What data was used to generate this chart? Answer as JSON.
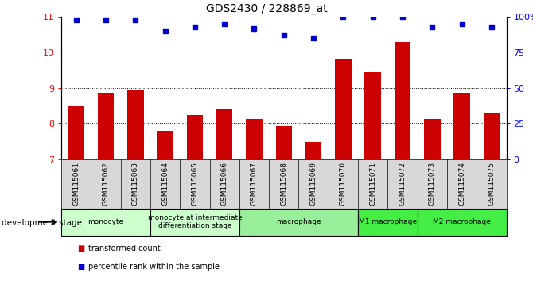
{
  "title": "GDS2430 / 228869_at",
  "samples": [
    "GSM115061",
    "GSM115062",
    "GSM115063",
    "GSM115064",
    "GSM115065",
    "GSM115066",
    "GSM115067",
    "GSM115068",
    "GSM115069",
    "GSM115070",
    "GSM115071",
    "GSM115072",
    "GSM115073",
    "GSM115074",
    "GSM115075"
  ],
  "bar_values": [
    8.5,
    8.85,
    8.95,
    7.8,
    8.25,
    8.4,
    8.15,
    7.95,
    7.5,
    9.82,
    9.45,
    10.28,
    8.15,
    8.85,
    8.3
  ],
  "percentile_values": [
    98,
    98,
    98,
    90,
    93,
    95,
    92,
    87,
    85,
    100,
    100,
    100,
    93,
    95,
    93
  ],
  "bar_color": "#cc0000",
  "dot_color": "#0000cc",
  "ylim_left": [
    7,
    11
  ],
  "ylim_right": [
    0,
    100
  ],
  "yticks_left": [
    7,
    8,
    9,
    10,
    11
  ],
  "yticks_right": [
    0,
    25,
    50,
    75,
    100
  ],
  "ytick_labels_right": [
    "0",
    "25",
    "50",
    "75",
    "100%"
  ],
  "group_spans": [
    {
      "start": 0,
      "end": 2,
      "label": "monocyte",
      "color": "#ccffcc"
    },
    {
      "start": 3,
      "end": 5,
      "label": "monocyte at intermediate\ndifferentiation stage",
      "color": "#ccffcc"
    },
    {
      "start": 6,
      "end": 9,
      "label": "macrophage",
      "color": "#99ee99"
    },
    {
      "start": 10,
      "end": 11,
      "label": "M1 macrophage",
      "color": "#44ee44"
    },
    {
      "start": 12,
      "end": 14,
      "label": "M2 macrophage",
      "color": "#44ee44"
    }
  ],
  "dev_stage_label": "development stage",
  "legend_items": [
    {
      "color": "#cc0000",
      "label": "transformed count"
    },
    {
      "color": "#0000cc",
      "label": "percentile rank within the sample"
    }
  ]
}
